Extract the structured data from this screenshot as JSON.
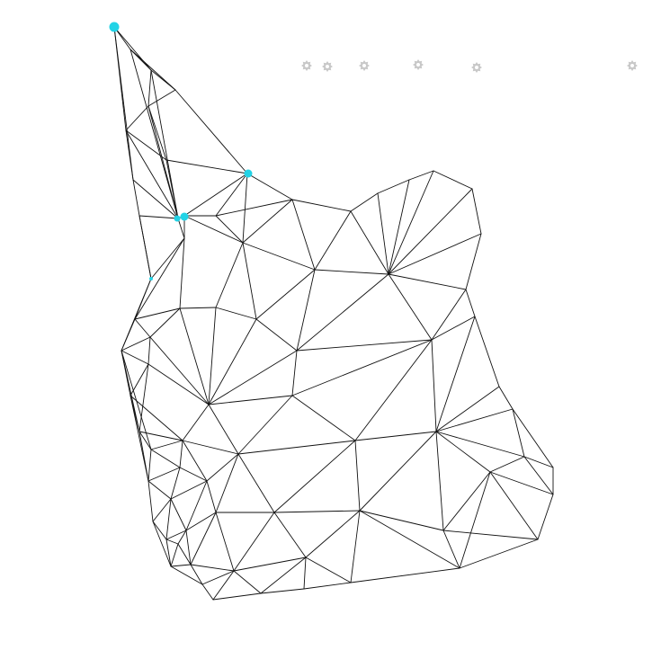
{
  "mesh": {
    "colors": {
      "background": "#ffffff",
      "edge": "#111111",
      "vertex_highlight": "#22d3e6",
      "gear_icon": "#c8c8c8"
    },
    "toolbar_icons": [
      {
        "name": "gear-icon-1"
      },
      {
        "name": "gear-icon-2"
      },
      {
        "name": "gear-icon-3"
      },
      {
        "name": "gear-icon-4"
      },
      {
        "name": "gear-icon-5"
      },
      {
        "name": "gear-icon-6"
      }
    ]
  }
}
